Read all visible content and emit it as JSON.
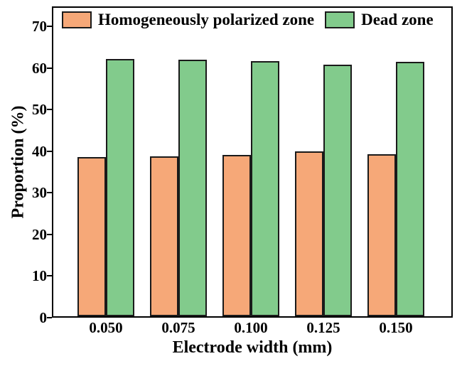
{
  "chart_data": {
    "type": "bar",
    "title": "",
    "categories": [
      "0.050",
      "0.075",
      "0.100",
      "0.125",
      "0.150"
    ],
    "series": [
      {
        "name": "Homogeneously polarized zone",
        "color": "#F6A878",
        "values": [
          38.2,
          38.4,
          38.7,
          39.6,
          38.9
        ]
      },
      {
        "name": "Dead zone",
        "color": "#82CB8C",
        "values": [
          61.8,
          61.6,
          61.3,
          60.4,
          61.1
        ]
      }
    ],
    "xlabel": "Electrode width (mm)",
    "ylabel": "Proportion (%)",
    "ylim": [
      0,
      74.8
    ],
    "yticks": [
      0,
      10,
      20,
      30,
      40,
      50,
      60,
      70
    ],
    "grid": false,
    "legend_position": "top-inside",
    "bar_border_color": "#1a1a1a",
    "axis_color": "#000000",
    "background_color": "#ffffff"
  }
}
